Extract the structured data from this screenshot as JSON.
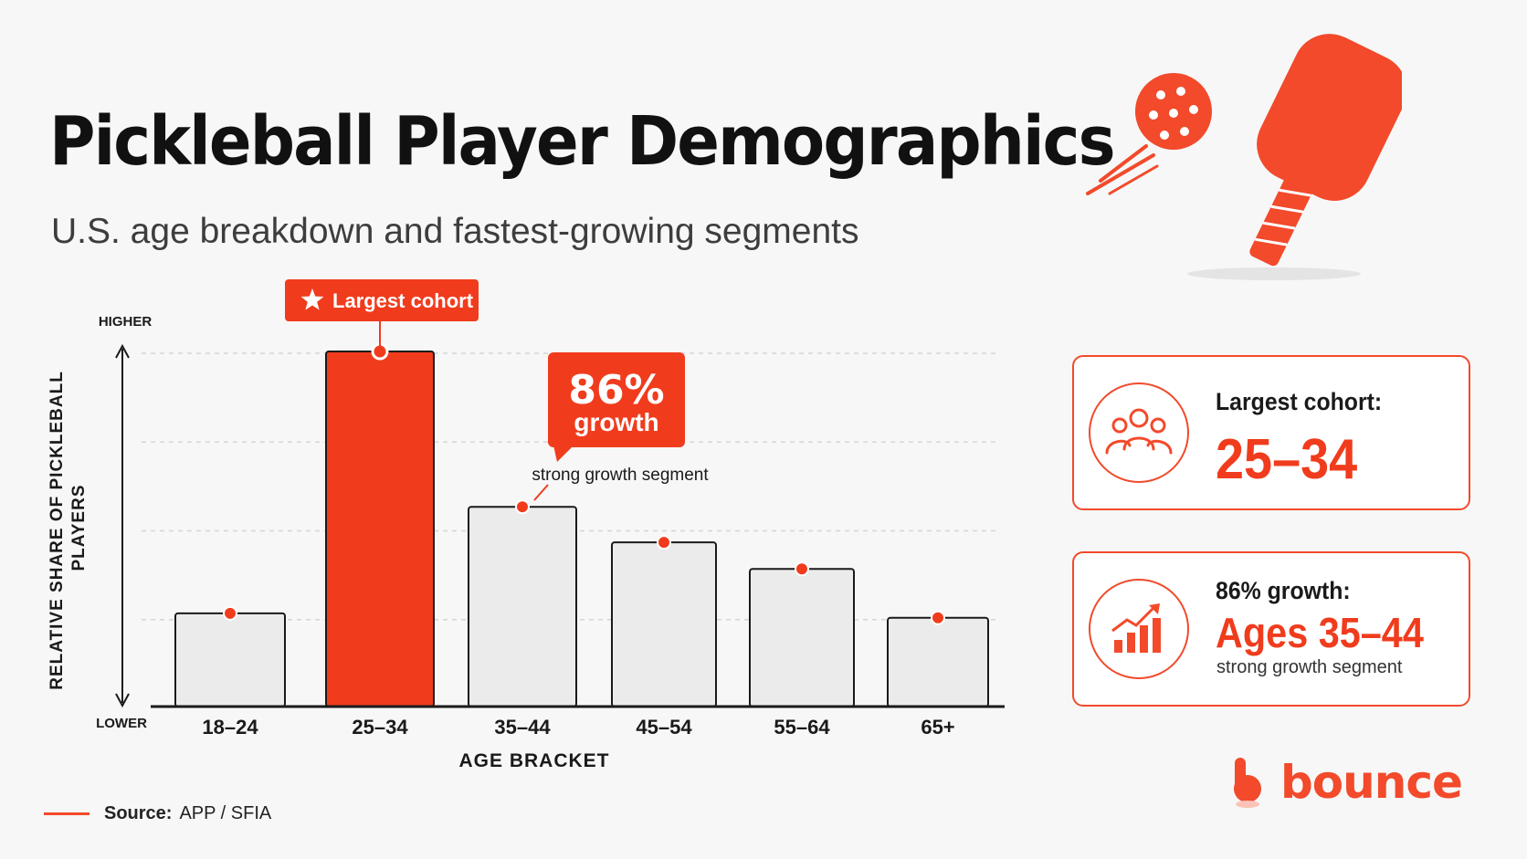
{
  "header": {
    "title": "Pickleball Player Demographics",
    "subtitle": "U.S. age breakdown and fastest-growing segments"
  },
  "colors": {
    "accent": "#f24a2b",
    "bar_neutral": "#ebebeb",
    "bar_highlight": "#f03c1d",
    "text_dark": "#141414"
  },
  "chart_data": {
    "type": "bar",
    "title": "",
    "xlabel": "AGE BRACKET",
    "ylabel": "RELATIVE SHARE OF PICKLEBALL PLAYERS",
    "y_axis_top_label": "HIGHER",
    "y_axis_bottom_label": "LOWER",
    "ylim": [
      0,
      4
    ],
    "grid": true,
    "categories": [
      "18–24",
      "25–34",
      "35–44",
      "45–54",
      "55–64",
      "65+"
    ],
    "values": [
      1.05,
      4.0,
      2.25,
      1.85,
      1.55,
      1.0
    ],
    "highlight_index": 1,
    "annotations": {
      "largest_cohort": {
        "category_index": 1,
        "label": "Largest cohort",
        "icon": "star-icon"
      },
      "growth": {
        "category_index": 2,
        "value": "86%",
        "label": "growth",
        "note": "strong growth segment"
      }
    }
  },
  "cards": {
    "cohort": {
      "label": "Largest cohort:",
      "value": "25–34",
      "icon": "people-icon"
    },
    "growth": {
      "label": "86% growth:",
      "value": "Ages 35–44",
      "note": "strong growth segment",
      "icon": "growth-chart-icon"
    }
  },
  "footer": {
    "source_label": "Source:",
    "source_value": "APP / SFIA",
    "brand": "bounce"
  },
  "illustration": {
    "icons": [
      "pickleball-ball-icon",
      "pickleball-paddle-icon"
    ]
  }
}
